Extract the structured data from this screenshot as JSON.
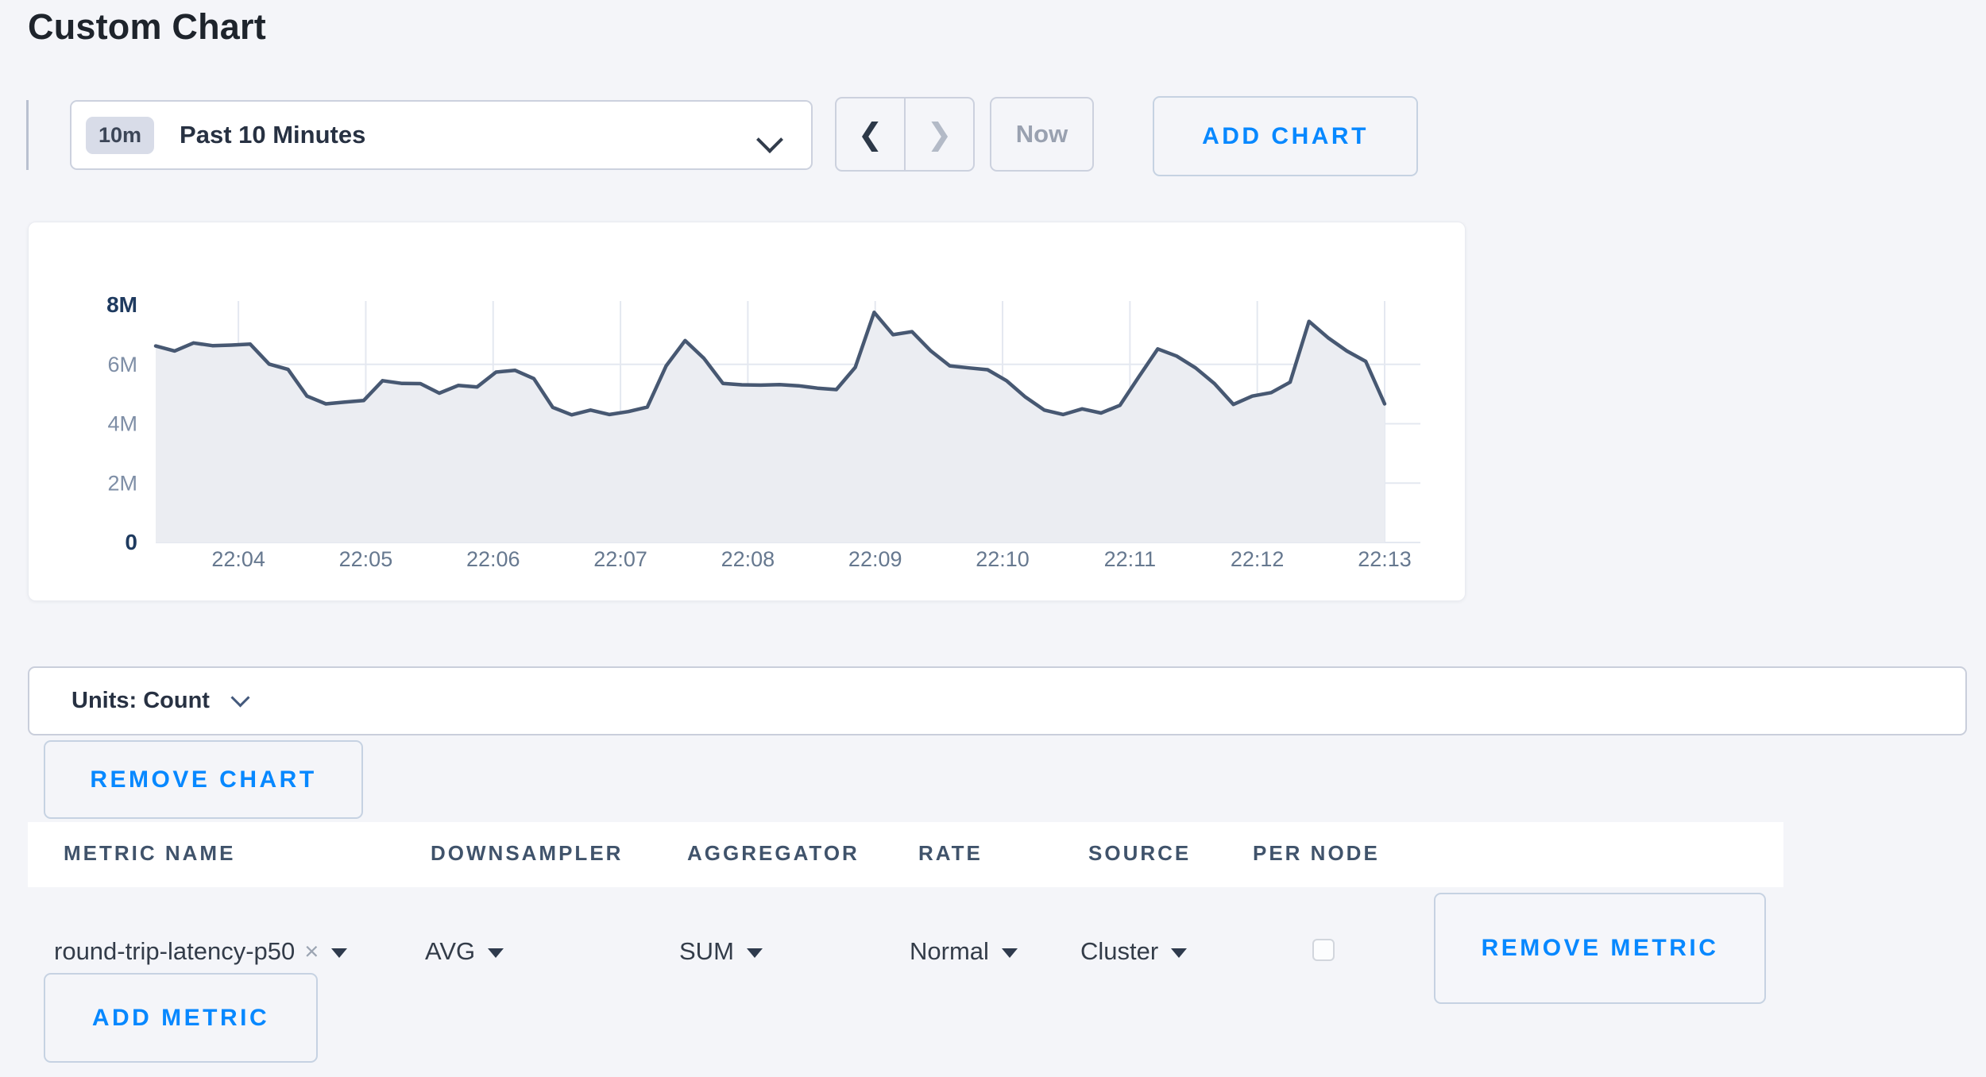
{
  "page": {
    "title": "Custom Chart",
    "background": "#f4f5f9",
    "accent_blue": "#0788ff"
  },
  "toolbar": {
    "range_badge": "10m",
    "range_label": "Past 10 Minutes",
    "now_label": "Now",
    "add_chart_label": "ADD CHART",
    "prev_icon": "❮",
    "next_icon": "❯"
  },
  "chart_data": {
    "type": "area",
    "title": "",
    "series": [
      {
        "name": "round-trip-latency-p50",
        "unit": "count",
        "values_millions": [
          6.62,
          6.45,
          6.72,
          6.63,
          6.65,
          6.68,
          6.01,
          5.83,
          4.93,
          4.67,
          4.73,
          4.78,
          5.45,
          5.36,
          5.35,
          5.03,
          5.29,
          5.24,
          5.74,
          5.8,
          5.52,
          4.55,
          4.3,
          4.46,
          4.31,
          4.41,
          4.56,
          5.95,
          6.8,
          6.2,
          5.36,
          5.31,
          5.3,
          5.32,
          5.28,
          5.2,
          5.15,
          5.9,
          7.75,
          7.0,
          7.1,
          6.45,
          5.95,
          5.88,
          5.82,
          5.45,
          4.9,
          4.46,
          4.31,
          4.5,
          4.36,
          4.62,
          5.58,
          6.52,
          6.28,
          5.88,
          5.35,
          4.65,
          4.93,
          5.05,
          5.4,
          7.45,
          6.9,
          6.45,
          6.1,
          4.67
        ]
      }
    ],
    "x_start": "22:03",
    "x_end": "22:13",
    "x_ticks": [
      "22:04",
      "22:05",
      "22:06",
      "22:07",
      "22:08",
      "22:09",
      "22:10",
      "22:11",
      "22:12",
      "22:13"
    ],
    "y_ticks": [
      {
        "label": "8M",
        "value": 8,
        "strong": true
      },
      {
        "label": "6M",
        "value": 6,
        "strong": false
      },
      {
        "label": "4M",
        "value": 4,
        "strong": false
      },
      {
        "label": "2M",
        "value": 2,
        "strong": false
      },
      {
        "label": "0",
        "value": 0,
        "strong": true
      }
    ],
    "ylim": [
      0,
      8.1
    ],
    "grid": true,
    "legend": "none",
    "colors": {
      "line": "#475872",
      "fill": "#ebedf2",
      "grid": "#e4e8f0",
      "tick_label": "#66788f",
      "ytick_label": "#7e8ea6",
      "ytick_label_strong": "#1e3a5f"
    }
  },
  "units_bar": {
    "label": "Units: Count"
  },
  "buttons": {
    "remove_chart": "REMOVE CHART",
    "remove_metric": "REMOVE METRIC",
    "add_metric": "ADD METRIC"
  },
  "metrics_table": {
    "headers": [
      "METRIC NAME",
      "DOWNSAMPLER",
      "AGGREGATOR",
      "RATE",
      "SOURCE",
      "PER NODE"
    ],
    "rows": [
      {
        "metric": "round-trip-latency-p50",
        "clear_icon": "×",
        "downsampler": "AVG",
        "aggregator": "SUM",
        "rate": "Normal",
        "source": "Cluster",
        "per_node_checked": false
      }
    ]
  }
}
